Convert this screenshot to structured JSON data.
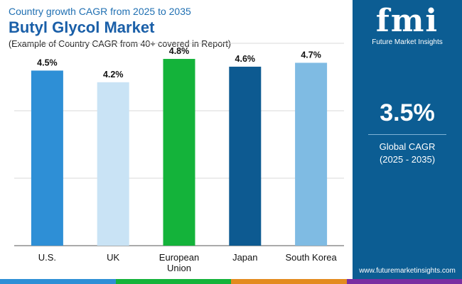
{
  "header": {
    "subtitle": "Country growth CAGR from 2025 to 2035",
    "title": "Butyl Glycol Market",
    "note": "(Example of Country CAGR from 40+ covered in Report)"
  },
  "chart_data": {
    "type": "bar",
    "categories": [
      "U.S.",
      "UK",
      "European Union",
      "Japan",
      "South Korea"
    ],
    "category_lines": [
      [
        "U.S."
      ],
      [
        "UK"
      ],
      [
        "European",
        "Union"
      ],
      [
        "Japan"
      ],
      [
        "South Korea"
      ]
    ],
    "values": [
      4.5,
      4.2,
      4.8,
      4.6,
      4.7
    ],
    "labels": [
      "4.5%",
      "4.2%",
      "4.8%",
      "4.6%",
      "4.7%"
    ],
    "bar_colors": [
      "#2e8fd6",
      "#c9e3f5",
      "#14b33a",
      "#0d5a91",
      "#7fbbe3"
    ],
    "title": "Butyl Glycol Market",
    "xlabel": "",
    "ylabel": "",
    "ylim": [
      0,
      5.0
    ],
    "grid": true
  },
  "sidebar": {
    "logo_mark": "fmi",
    "logo_text": "Future Market Insights",
    "cagr_value": "3.5%",
    "cagr_label": "Global CAGR",
    "cagr_period": "(2025 - 2035)",
    "website": "www.futuremarketinsights.com"
  },
  "colors": {
    "panel": "#0c5d93",
    "title": "#1a5fa8",
    "bottom_bar": [
      "#2e8fd6",
      "#14b33a",
      "#e38b1f",
      "#7a2ea1"
    ]
  }
}
